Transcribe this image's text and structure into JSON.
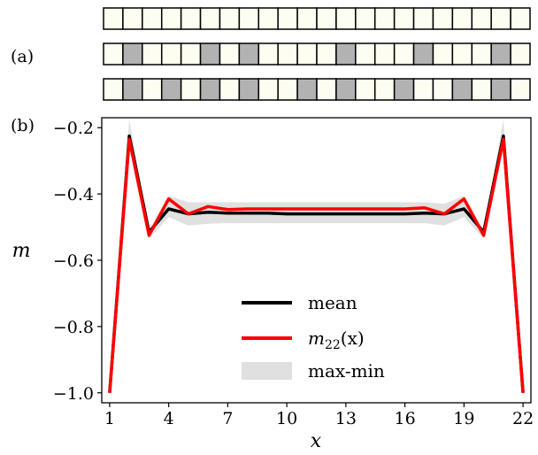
{
  "panels": {
    "a": "(a)",
    "b": "(b)"
  },
  "strips": {
    "cells": 22,
    "colors": {
      "light": "#fdfdf1",
      "dark": "#b2b2b2"
    },
    "rows": [
      {
        "dark_cells": []
      },
      {
        "dark_cells": [
          2,
          6,
          8,
          13,
          17,
          21
        ]
      },
      {
        "dark_cells": [
          2,
          4,
          6,
          8,
          11,
          13,
          16,
          19,
          21
        ]
      }
    ]
  },
  "chart_data": {
    "type": "line",
    "xlabel": "x",
    "ylabel": "m",
    "xlim": [
      0.6,
      22.4
    ],
    "ylim": [
      -1.03,
      -0.17
    ],
    "xticks": [
      1,
      4,
      7,
      10,
      13,
      16,
      19,
      22
    ],
    "xtick_labels": [
      "1",
      "4",
      "7",
      "10",
      "13",
      "16",
      "19",
      "22"
    ],
    "yticks": [
      -0.2,
      -0.4,
      -0.6,
      -0.8,
      -1.0
    ],
    "ytick_labels": [
      "−0.2",
      "−0.4",
      "−0.6",
      "−0.8",
      "−1.0"
    ],
    "x": [
      1,
      2,
      3,
      4,
      5,
      6,
      7,
      8,
      9,
      10,
      11,
      12,
      13,
      14,
      15,
      16,
      17,
      18,
      19,
      20,
      21,
      22
    ],
    "series": [
      {
        "name": "mean",
        "color": "#000000",
        "values": [
          -1.0,
          -0.225,
          -0.515,
          -0.445,
          -0.46,
          -0.455,
          -0.458,
          -0.458,
          -0.458,
          -0.46,
          -0.46,
          -0.46,
          -0.46,
          -0.46,
          -0.46,
          -0.46,
          -0.458,
          -0.46,
          -0.445,
          -0.515,
          -0.225,
          -1.0
        ]
      },
      {
        "name": "m_22(x)",
        "color": "#ff0000",
        "values": [
          -1.0,
          -0.235,
          -0.525,
          -0.415,
          -0.46,
          -0.438,
          -0.447,
          -0.445,
          -0.445,
          -0.445,
          -0.445,
          -0.445,
          -0.445,
          -0.445,
          -0.445,
          -0.445,
          -0.442,
          -0.46,
          -0.415,
          -0.525,
          -0.235,
          -1.0
        ]
      },
      {
        "name": "max-min",
        "type": "band",
        "color": "#e0e0e0",
        "upper": [
          -1.0,
          -0.175,
          -0.51,
          -0.405,
          -0.425,
          -0.425,
          -0.425,
          -0.425,
          -0.425,
          -0.425,
          -0.425,
          -0.425,
          -0.425,
          -0.425,
          -0.425,
          -0.425,
          -0.425,
          -0.43,
          -0.405,
          -0.51,
          -0.175,
          -1.0
        ],
        "lower": [
          -1.0,
          -0.24,
          -0.535,
          -0.47,
          -0.495,
          -0.49,
          -0.488,
          -0.488,
          -0.488,
          -0.488,
          -0.488,
          -0.488,
          -0.488,
          -0.488,
          -0.488,
          -0.488,
          -0.488,
          -0.495,
          -0.47,
          -0.535,
          -0.24,
          -1.0
        ]
      }
    ],
    "legend": {
      "placement": "center-bottom",
      "entries": [
        {
          "label": "mean",
          "color": "#000000",
          "kind": "line"
        },
        {
          "label_main": "m",
          "label_sub": "22",
          "label_tail": "(x)",
          "color": "#ff0000",
          "kind": "line"
        },
        {
          "label": "max-min",
          "color": "#e0e0e0",
          "kind": "patch"
        }
      ]
    }
  }
}
